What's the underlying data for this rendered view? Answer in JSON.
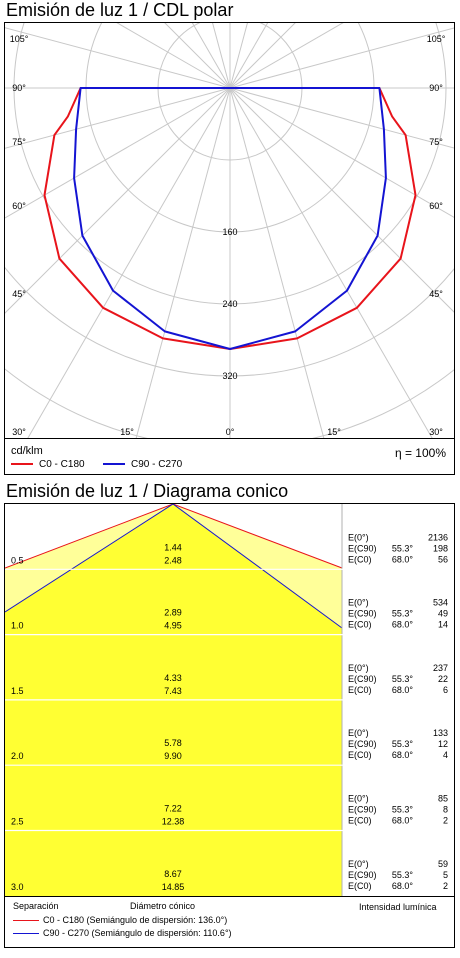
{
  "polar": {
    "title": "Emisión de luz 1 / CDL polar",
    "unit": "cd/klm",
    "eta": "η = 100%",
    "angle_labels": [
      "105°",
      "90°",
      "75°",
      "60°",
      "45°",
      "30°",
      "15°",
      "0°",
      "15°",
      "30°",
      "45°",
      "60°",
      "75°",
      "90°",
      "105°"
    ],
    "radial_labels": [
      "160",
      "240",
      "320"
    ],
    "legend": [
      {
        "label": "C0 - C180",
        "color": "#e8141b"
      },
      {
        "label": "C90 - C270",
        "color": "#1414d2"
      }
    ]
  },
  "cone": {
    "title": "Emisión de luz 1 / Diagrama conico",
    "footer": {
      "separation": "Separación",
      "diameter": "Diámetro cónico",
      "intensity": "Intensidad lumínica",
      "c0": "C0 - C180 (Semiángulo de dispersión: 136.0°)",
      "c90": "C90 - C270 (Semiángulo de dispersión: 110.6°)"
    },
    "rows": [
      {
        "h": "0.5",
        "d1": "1.44",
        "d2": "2.48",
        "e0": "2136",
        "e90": "198",
        "ec0": "56"
      },
      {
        "h": "1.0",
        "d1": "2.89",
        "d2": "4.95",
        "e0": "534",
        "e90": "49",
        "ec0": "14"
      },
      {
        "h": "1.5",
        "d1": "4.33",
        "d2": "7.43",
        "e0": "237",
        "e90": "22",
        "ec0": "6"
      },
      {
        "h": "2.0",
        "d1": "5.78",
        "d2": "9.90",
        "e0": "133",
        "e90": "12",
        "ec0": "4"
      },
      {
        "h": "2.5",
        "d1": "7.22",
        "d2": "12.38",
        "e0": "85",
        "e90": "8",
        "ec0": "2"
      },
      {
        "h": "3.0",
        "d1": "8.67",
        "d2": "14.85",
        "e0": "59",
        "e90": "5",
        "ec0": "2"
      }
    ],
    "labels": {
      "e0": "E(0°)",
      "e90": "E(C90)",
      "ec0": "E(C0)",
      "a90": "55.3°",
      "ac0": "68.0°"
    },
    "colors": {
      "fill": "#ffff33",
      "fill_light": "#ffff99",
      "red": "#e8141b",
      "blue": "#1414d2"
    }
  },
  "chart_data": [
    {
      "type": "line",
      "title": "Emisión de luz 1 / CDL polar",
      "ylabel": "cd/klm",
      "series": [
        {
          "name": "C0 - C180",
          "gamma": [
            0,
            15,
            30,
            45,
            60,
            75,
            80,
            90
          ],
          "values": [
            290,
            288,
            282,
            268,
            238,
            202,
            183,
            166
          ]
        },
        {
          "name": "C90 - C270",
          "gamma": [
            0,
            15,
            30,
            45,
            60,
            75,
            90
          ],
          "values": [
            290,
            280,
            260,
            232,
            200,
            177,
            166
          ]
        }
      ],
      "radial_ticks": [
        160,
        240,
        320
      ]
    },
    {
      "type": "table",
      "title": "Emisión de luz 1 / Diagrama conico",
      "columns": [
        "Separación",
        "Diámetro cónico C0-C180",
        "Diámetro cónico C90-C270",
        "E(0°)",
        "E(C90) 55.3°",
        "E(C0) 68.0°"
      ],
      "rows": [
        [
          0.5,
          1.44,
          2.48,
          2136,
          198,
          56
        ],
        [
          1.0,
          2.89,
          4.95,
          534,
          49,
          14
        ],
        [
          1.5,
          4.33,
          7.43,
          237,
          22,
          6
        ],
        [
          2.0,
          5.78,
          9.9,
          133,
          12,
          4
        ],
        [
          2.5,
          7.22,
          12.38,
          85,
          8,
          2
        ],
        [
          3.0,
          8.67,
          14.85,
          59,
          5,
          2
        ]
      ]
    }
  ]
}
